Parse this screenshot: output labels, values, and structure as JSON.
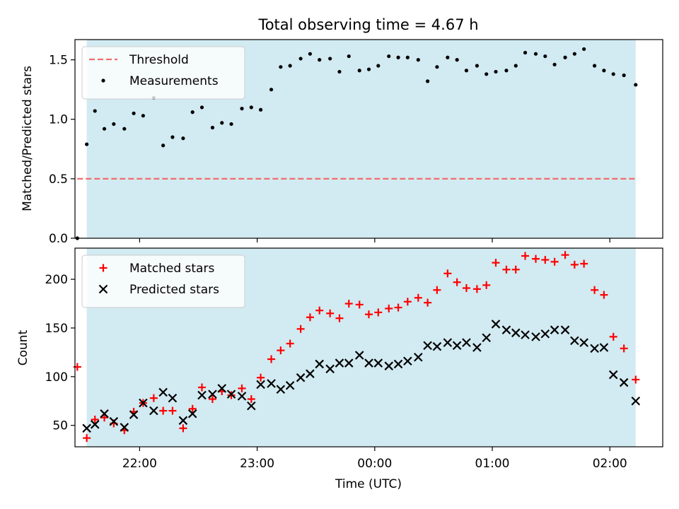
{
  "chart_data": [
    {
      "type": "scatter",
      "panel": "top",
      "title": "Total observing time = 4.67 h",
      "xlabel": "",
      "ylabel": "Matched/Predicted stars",
      "x_unit": "hours (UTC), times after 24 are after midnight",
      "xlim": [
        21.45,
        26.45
      ],
      "ylim": [
        0,
        1.67
      ],
      "yticks": [
        0.0,
        0.5,
        1.0,
        1.5
      ],
      "ytick_labels": [
        "0.0",
        "0.5",
        "1.0",
        "1.5"
      ],
      "grid": false,
      "shaded_span": {
        "x0": 21.55,
        "x1": 26.22,
        "color": "#add8e6"
      },
      "legend": {
        "placement": "top-left"
      },
      "threshold": {
        "name": "Threshold",
        "value": 0.5,
        "x0": 21.47,
        "x1": 26.22,
        "color": "#f26d6d"
      },
      "series": [
        {
          "name": "Measurements",
          "marker": "dot",
          "color": "#000000",
          "x": [
            21.47,
            21.55,
            21.62,
            21.7,
            21.78,
            21.87,
            21.95,
            22.03,
            22.12,
            22.2,
            22.28,
            22.37,
            22.45,
            22.53,
            22.62,
            22.7,
            22.78,
            22.87,
            22.95,
            23.03,
            23.12,
            23.2,
            23.28,
            23.37,
            23.45,
            23.53,
            23.62,
            23.7,
            23.78,
            23.87,
            23.95,
            24.03,
            24.12,
            24.2,
            24.28,
            24.37,
            24.45,
            24.53,
            24.62,
            24.7,
            24.78,
            24.87,
            24.95,
            25.03,
            25.12,
            25.2,
            25.28,
            25.37,
            25.45,
            25.53,
            25.62,
            25.7,
            25.78,
            25.87,
            25.95,
            26.03,
            26.12,
            26.22
          ],
          "y": [
            0.0,
            0.79,
            1.07,
            0.92,
            0.96,
            0.92,
            1.05,
            1.03,
            1.18,
            0.78,
            0.85,
            0.84,
            1.06,
            1.1,
            0.93,
            0.97,
            0.96,
            1.09,
            1.1,
            1.08,
            1.25,
            1.44,
            1.45,
            1.51,
            1.55,
            1.5,
            1.51,
            1.4,
            1.53,
            1.41,
            1.42,
            1.45,
            1.53,
            1.52,
            1.52,
            1.5,
            1.32,
            1.44,
            1.52,
            1.5,
            1.41,
            1.45,
            1.38,
            1.4,
            1.41,
            1.45,
            1.56,
            1.55,
            1.53,
            1.46,
            1.52,
            1.55,
            1.59,
            1.45,
            1.41,
            1.38,
            1.37,
            1.29
          ]
        }
      ]
    },
    {
      "type": "scatter",
      "panel": "bottom",
      "title": "",
      "xlabel": "Time (UTC)",
      "ylabel": "Count",
      "x_unit": "hours (UTC), times after 24 are after midnight",
      "xlim": [
        21.45,
        26.45
      ],
      "ylim": [
        28,
        232
      ],
      "xticks": [
        22,
        23,
        24,
        25,
        26
      ],
      "xtick_labels": [
        "22:00",
        "23:00",
        "00:00",
        "01:00",
        "02:00"
      ],
      "yticks": [
        50,
        100,
        150,
        200
      ],
      "ytick_labels": [
        "50",
        "100",
        "150",
        "200"
      ],
      "grid": false,
      "shaded_span": {
        "x0": 21.55,
        "x1": 26.22,
        "color": "#add8e6"
      },
      "legend": {
        "placement": "top-left"
      },
      "series": [
        {
          "name": "Matched stars",
          "marker": "plus",
          "color": "#ff0000",
          "x": [
            21.47,
            21.55,
            21.62,
            21.7,
            21.78,
            21.87,
            21.95,
            22.03,
            22.12,
            22.2,
            22.28,
            22.37,
            22.45,
            22.53,
            22.62,
            22.7,
            22.78,
            22.87,
            22.95,
            23.03,
            23.12,
            23.2,
            23.28,
            23.37,
            23.45,
            23.53,
            23.62,
            23.7,
            23.78,
            23.87,
            23.95,
            24.03,
            24.12,
            24.2,
            24.28,
            24.37,
            24.45,
            24.53,
            24.62,
            24.7,
            24.78,
            24.87,
            24.95,
            25.03,
            25.12,
            25.2,
            25.28,
            25.37,
            25.45,
            25.53,
            25.62,
            25.7,
            25.78,
            25.87,
            25.95,
            26.03,
            26.12,
            26.22
          ],
          "y": [
            110,
            37,
            56,
            58,
            52,
            45,
            64,
            73,
            78,
            65,
            65,
            47,
            67,
            89,
            77,
            85,
            81,
            88,
            77,
            99,
            118,
            127,
            134,
            149,
            161,
            168,
            165,
            160,
            175,
            174,
            164,
            166,
            170,
            171,
            177,
            181,
            176,
            189,
            206,
            197,
            191,
            190,
            194,
            217,
            210,
            210,
            224,
            221,
            220,
            218,
            225,
            215,
            216,
            189,
            184,
            141,
            129,
            97
          ]
        },
        {
          "name": "Predicted stars",
          "marker": "x",
          "color": "#000000",
          "x": [
            21.55,
            21.62,
            21.7,
            21.78,
            21.87,
            21.95,
            22.03,
            22.12,
            22.2,
            22.28,
            22.37,
            22.45,
            22.53,
            22.62,
            22.7,
            22.78,
            22.87,
            22.95,
            23.03,
            23.12,
            23.2,
            23.28,
            23.37,
            23.45,
            23.53,
            23.62,
            23.7,
            23.78,
            23.87,
            23.95,
            24.03,
            24.12,
            24.2,
            24.28,
            24.37,
            24.45,
            24.53,
            24.62,
            24.7,
            24.78,
            24.87,
            24.95,
            25.03,
            25.12,
            25.2,
            25.28,
            25.37,
            25.45,
            25.53,
            25.62,
            25.7,
            25.78,
            25.87,
            25.95,
            26.03,
            26.12,
            26.22
          ],
          "y": [
            47,
            51,
            62,
            54,
            48,
            61,
            73,
            65,
            84,
            78,
            55,
            62,
            81,
            82,
            88,
            82,
            80,
            70,
            92,
            93,
            87,
            91,
            99,
            103,
            113,
            108,
            114,
            114,
            122,
            114,
            114,
            111,
            113,
            116,
            120,
            132,
            131,
            135,
            132,
            135,
            130,
            140,
            154,
            148,
            145,
            143,
            141,
            144,
            148,
            148,
            137,
            135,
            129,
            130,
            102,
            94,
            75
          ]
        }
      ]
    }
  ]
}
